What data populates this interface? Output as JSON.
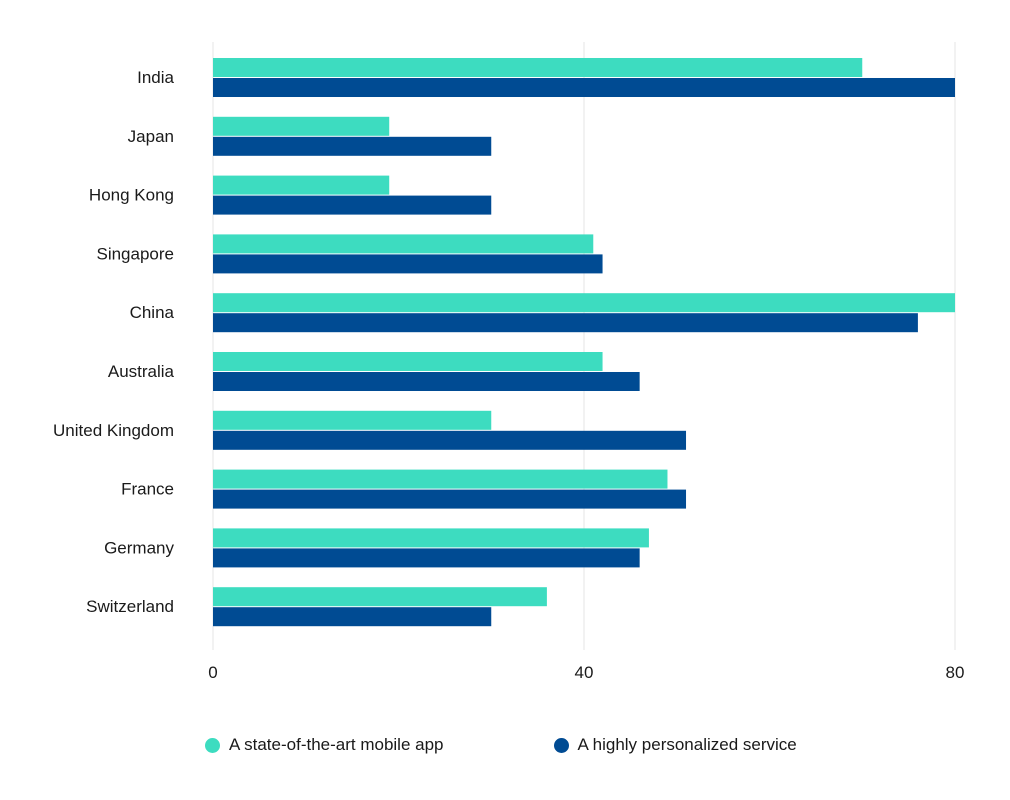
{
  "chart_data": {
    "type": "bar",
    "orientation": "horizontal",
    "categories": [
      "India",
      "Japan",
      "Hong Kong",
      "Singapore",
      "China",
      "Australia",
      "United Kingdom",
      "France",
      "Germany",
      "Switzerland"
    ],
    "series": [
      {
        "name": "A state-of-the-art mobile app",
        "color": "#3ddcc0",
        "values": [
          70,
          19,
          19,
          41,
          80,
          42,
          30,
          49,
          47,
          36
        ]
      },
      {
        "name": "A highly personalized service",
        "color": "#004b93",
        "values": [
          80,
          30,
          30,
          42,
          76,
          46,
          51,
          51,
          46,
          30
        ]
      }
    ],
    "xlim": [
      0,
      80
    ],
    "xticks": [
      "0",
      "40",
      "80"
    ],
    "grid": true,
    "legend_position": "bottom"
  }
}
